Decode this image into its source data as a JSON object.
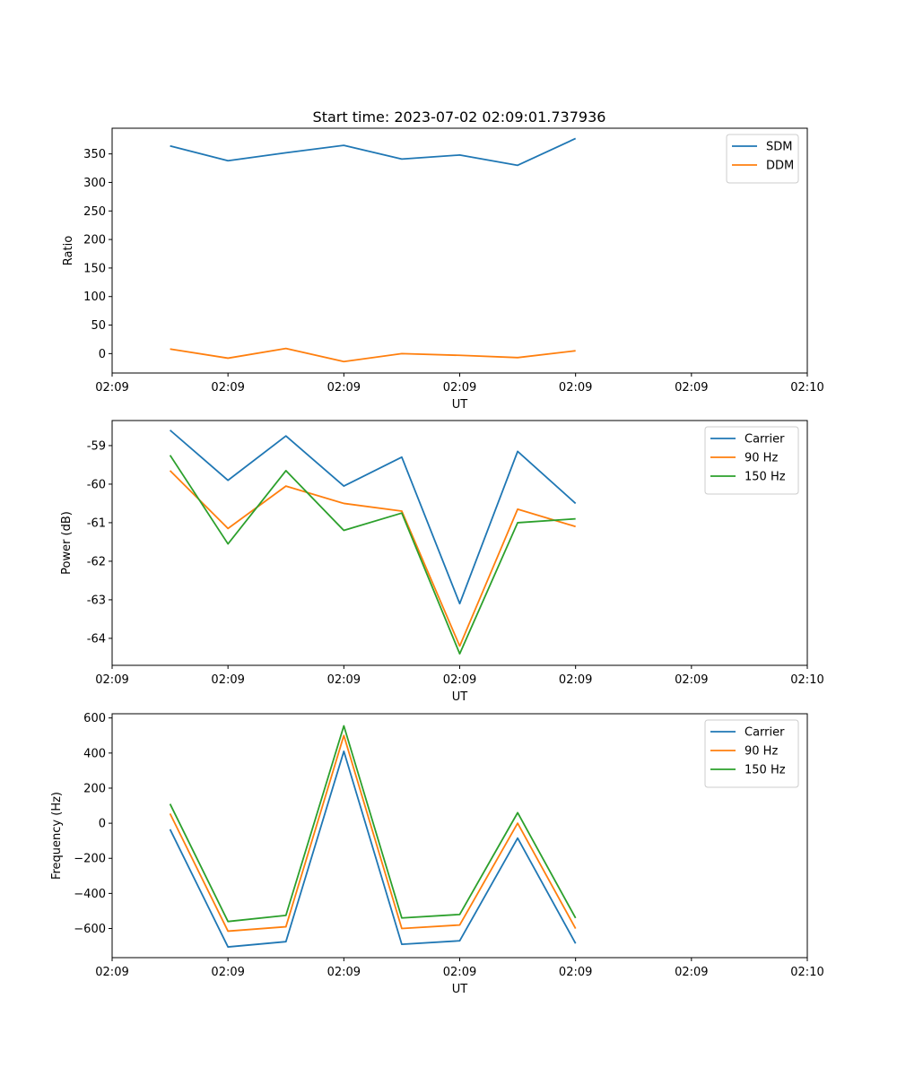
{
  "title": "Start time: 2023-07-02 02:09:01.737936",
  "chart_data": [
    {
      "type": "line",
      "title": "Start time: 2023-07-02 02:09:01.737936",
      "xlabel": "UT",
      "ylabel": "Ratio",
      "x": [
        0.5,
        1,
        1.5,
        2,
        2.5,
        3,
        3.5,
        4
      ],
      "xlim": [
        0,
        6
      ],
      "xticks": [
        0,
        1,
        2,
        3,
        4,
        5,
        6
      ],
      "xtick_labels": [
        "02:09",
        "02:09",
        "02:09",
        "02:09",
        "02:09",
        "02:09",
        "02:10"
      ],
      "ylim": [
        -34,
        395
      ],
      "yticks": [
        0,
        50,
        100,
        150,
        200,
        250,
        300,
        350
      ],
      "legend_position": "top-right",
      "series": [
        {
          "name": "SDM",
          "color": "#1f77b4",
          "values": [
            364,
            338,
            352,
            365,
            341,
            348,
            330,
            377
          ]
        },
        {
          "name": "DDM",
          "color": "#ff7f0e",
          "values": [
            8,
            -8,
            9,
            -14,
            0,
            -3,
            -7,
            5
          ]
        }
      ]
    },
    {
      "type": "line",
      "xlabel": "UT",
      "ylabel": "Power (dB)",
      "x": [
        0.5,
        1,
        1.5,
        2,
        2.5,
        3,
        3.5,
        4
      ],
      "xlim": [
        0,
        6
      ],
      "xticks": [
        0,
        1,
        2,
        3,
        4,
        5,
        6
      ],
      "xtick_labels": [
        "02:09",
        "02:09",
        "02:09",
        "02:09",
        "02:09",
        "02:09",
        "02:10"
      ],
      "ylim": [
        -64.7,
        -58.35
      ],
      "yticks": [
        -64,
        -63,
        -62,
        -61,
        -60,
        -59
      ],
      "legend_position": "top-right",
      "series": [
        {
          "name": "Carrier",
          "color": "#1f77b4",
          "values": [
            -58.6,
            -59.9,
            -58.75,
            -60.05,
            -59.3,
            -63.1,
            -59.15,
            -60.5
          ]
        },
        {
          "name": "90 Hz",
          "color": "#ff7f0e",
          "values": [
            -59.65,
            -61.15,
            -60.05,
            -60.5,
            -60.7,
            -64.2,
            -60.65,
            -61.1
          ]
        },
        {
          "name": "150 Hz",
          "color": "#2ca02c",
          "values": [
            -59.25,
            -61.55,
            -59.65,
            -61.2,
            -60.75,
            -64.4,
            -61.0,
            -60.9
          ]
        }
      ]
    },
    {
      "type": "line",
      "xlabel": "UT",
      "ylabel": "Frequency (Hz)",
      "x": [
        0.5,
        1,
        1.5,
        2,
        2.5,
        3,
        3.5,
        4
      ],
      "xlim": [
        0,
        6
      ],
      "xticks": [
        0,
        1,
        2,
        3,
        4,
        5,
        6
      ],
      "xtick_labels": [
        "02:09",
        "02:09",
        "02:09",
        "02:09",
        "02:09",
        "02:09",
        "02:10"
      ],
      "ylim": [
        -766,
        624
      ],
      "yticks": [
        -600,
        -400,
        -200,
        0,
        200,
        400,
        600
      ],
      "ytick_labels": [
        "−600",
        "−400",
        "−200",
        "0",
        "200",
        "400",
        "600"
      ],
      "legend_position": "top-right",
      "series": [
        {
          "name": "Carrier",
          "color": "#1f77b4",
          "values": [
            -35,
            -705,
            -675,
            410,
            -690,
            -670,
            -85,
            -685
          ]
        },
        {
          "name": "90 Hz",
          "color": "#ff7f0e",
          "values": [
            55,
            -615,
            -590,
            500,
            -600,
            -580,
            0,
            -600
          ]
        },
        {
          "name": "150 Hz",
          "color": "#2ca02c",
          "values": [
            110,
            -560,
            -525,
            555,
            -540,
            -520,
            60,
            -540
          ]
        }
      ]
    }
  ]
}
